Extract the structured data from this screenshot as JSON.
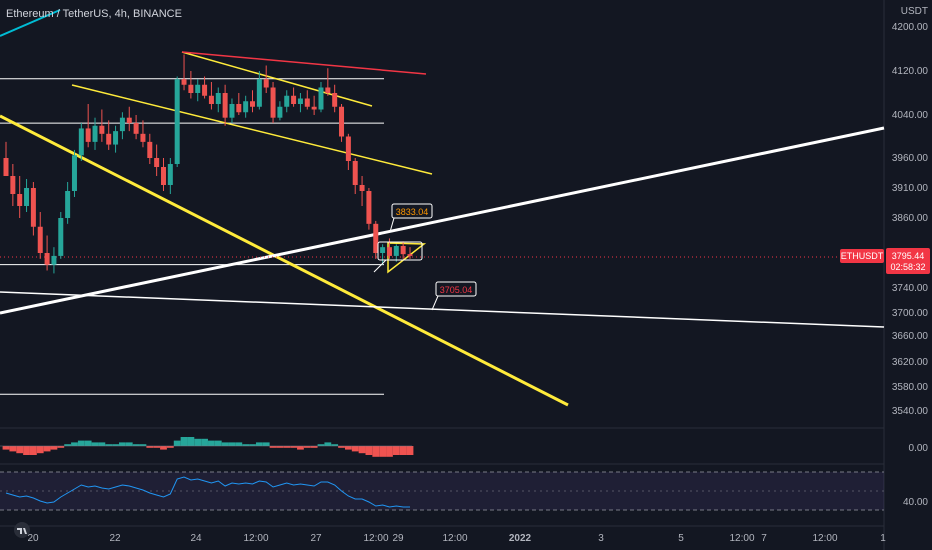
{
  "header": {
    "symbol_name": "Ethereum / TetherUS",
    "interval": "4h",
    "exchange": "BINANCE"
  },
  "price_axis": {
    "currency": "USDT",
    "ticks": [
      "4200.00",
      "4120.00",
      "4040.00",
      "3960.00",
      "3910.00",
      "3860.00",
      "3740.00",
      "3700.00",
      "3660.00",
      "3620.00",
      "3580.00",
      "3540.00"
    ],
    "tick_values": [
      4200,
      4120,
      4040,
      3960,
      3910,
      3860,
      3740,
      3700,
      3660,
      3620,
      3580,
      3540
    ]
  },
  "last_price_tag": {
    "symbol": "ETHUSDT",
    "price": "3795.44",
    "countdown": "02:58:32",
    "color": "#f23645"
  },
  "callouts": [
    {
      "label": "3833.04",
      "text_color": "#ff9800"
    },
    {
      "label": "3705.04",
      "text_color": "#f23645"
    }
  ],
  "time_axis": {
    "labels": [
      "20",
      "22",
      "24",
      "12:00",
      "27",
      "12:00",
      "29",
      "12:00",
      "2022",
      "3",
      "5",
      "12:00",
      "7",
      "12:00",
      "1"
    ]
  },
  "indicator_axes": {
    "macd_tick": "0.00",
    "rsi_tick": "40.00"
  },
  "colors": {
    "background": "#131722",
    "up": "#26a69a",
    "down": "#ef5350",
    "yellow": "#ffeb3b",
    "white": "#ffffff",
    "red_trend": "#f23645",
    "cyan": "#00bcd4",
    "rsi_line": "#2196f3",
    "hist_up": "#26a69a",
    "hist_down": "#ef5350"
  },
  "chart_data": {
    "type": "candlestick",
    "y_range": [
      3520,
      4230
    ],
    "horizontal_levels": [
      4106,
      4025,
      3780,
      3568
    ],
    "candles": [
      [
        3960,
        3990,
        3935,
        3930
      ],
      [
        3930,
        3950,
        3880,
        3900
      ],
      [
        3900,
        3930,
        3860,
        3880
      ],
      [
        3880,
        3925,
        3870,
        3910
      ],
      [
        3910,
        3920,
        3830,
        3845
      ],
      [
        3845,
        3870,
        3790,
        3800
      ],
      [
        3800,
        3830,
        3770,
        3780
      ],
      [
        3780,
        3810,
        3765,
        3795
      ],
      [
        3795,
        3870,
        3790,
        3860
      ],
      [
        3860,
        3920,
        3850,
        3905
      ],
      [
        3905,
        3975,
        3895,
        3965
      ],
      [
        3965,
        4025,
        3955,
        4015
      ],
      [
        4015,
        4060,
        3980,
        3990
      ],
      [
        3990,
        4035,
        3975,
        4020
      ],
      [
        4020,
        4050,
        3990,
        4005
      ],
      [
        4005,
        4030,
        3975,
        3985
      ],
      [
        3985,
        4020,
        3970,
        4010
      ],
      [
        4010,
        4045,
        3995,
        4035
      ],
      [
        4035,
        4055,
        4010,
        4025
      ],
      [
        4025,
        4040,
        3995,
        4005
      ],
      [
        4005,
        4030,
        3980,
        3990
      ],
      [
        3990,
        4005,
        3950,
        3960
      ],
      [
        3960,
        3985,
        3930,
        3945
      ],
      [
        3945,
        3960,
        3905,
        3915
      ],
      [
        3915,
        3960,
        3900,
        3950
      ],
      [
        3950,
        4110,
        3945,
        4105
      ],
      [
        4105,
        4150,
        4085,
        4095
      ],
      [
        4095,
        4120,
        4070,
        4080
      ],
      [
        4080,
        4105,
        4065,
        4095
      ],
      [
        4095,
        4110,
        4070,
        4075
      ],
      [
        4075,
        4100,
        4050,
        4060
      ],
      [
        4060,
        4090,
        4045,
        4080
      ],
      [
        4080,
        4095,
        4020,
        4035
      ],
      [
        4035,
        4070,
        4025,
        4060
      ],
      [
        4060,
        4080,
        4040,
        4045
      ],
      [
        4045,
        4075,
        4035,
        4065
      ],
      [
        4065,
        4085,
        4045,
        4055
      ],
      [
        4055,
        4120,
        4050,
        4105
      ],
      [
        4105,
        4130,
        4080,
        4090
      ],
      [
        4090,
        4100,
        4025,
        4035
      ],
      [
        4035,
        4065,
        4030,
        4055
      ],
      [
        4055,
        4085,
        4045,
        4075
      ],
      [
        4075,
        4090,
        4055,
        4060
      ],
      [
        4060,
        4080,
        4045,
        4070
      ],
      [
        4070,
        4085,
        4050,
        4055
      ],
      [
        4055,
        4075,
        4040,
        4050
      ],
      [
        4050,
        4100,
        4045,
        4090
      ],
      [
        4090,
        4125,
        4075,
        4080
      ],
      [
        4080,
        4095,
        4045,
        4055
      ],
      [
        4055,
        4060,
        3990,
        4000
      ],
      [
        4000,
        4005,
        3940,
        3955
      ],
      [
        3955,
        3960,
        3900,
        3915
      ],
      [
        3915,
        3930,
        3880,
        3905
      ],
      [
        3905,
        3910,
        3840,
        3850
      ],
      [
        3850,
        3855,
        3790,
        3800
      ],
      [
        3800,
        3815,
        3780,
        3810
      ],
      [
        3810,
        3825,
        3790,
        3795
      ],
      [
        3795,
        3815,
        3785,
        3812
      ],
      [
        3812,
        3820,
        3790,
        3798
      ],
      [
        3798,
        3810,
        3790,
        3795
      ]
    ],
    "macd_histogram": [
      -2,
      -3,
      -4,
      -5,
      -5,
      -4,
      -3,
      -2,
      -1,
      1,
      2,
      3,
      3,
      2,
      2,
      1,
      1,
      2,
      2,
      1,
      1,
      -1,
      -1,
      -2,
      -1,
      3,
      5,
      5,
      4,
      4,
      3,
      3,
      2,
      2,
      2,
      1,
      1,
      2,
      2,
      -1,
      -1,
      -1,
      -1,
      -2,
      -1,
      -1,
      1,
      2,
      1,
      -1,
      -2,
      -3,
      -4,
      -5,
      -6,
      -6,
      -6,
      -5,
      -5,
      -5
    ],
    "rsi": [
      48,
      46,
      44,
      45,
      43,
      40,
      38,
      39,
      44,
      48,
      52,
      56,
      54,
      55,
      53,
      52,
      54,
      56,
      55,
      53,
      51,
      48,
      46,
      44,
      47,
      62,
      64,
      61,
      62,
      60,
      58,
      60,
      55,
      58,
      57,
      58,
      57,
      60,
      59,
      54,
      56,
      58,
      56,
      57,
      56,
      55,
      59,
      59,
      56,
      50,
      45,
      42,
      42,
      39,
      35,
      36,
      34,
      35,
      34,
      34
    ]
  }
}
